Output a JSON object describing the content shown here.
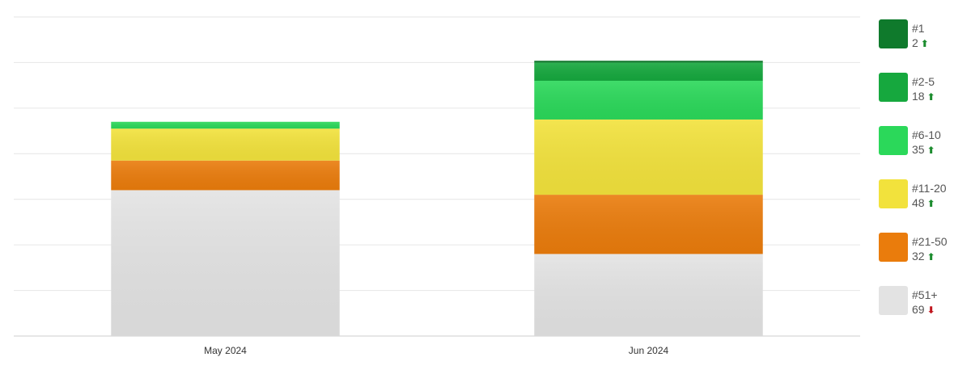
{
  "chart_data": {
    "type": "bar",
    "stacked": true,
    "categories": [
      "May 2024",
      "Jun 2024"
    ],
    "ylim": [
      0,
      70
    ],
    "grid": true,
    "legend_position": "right",
    "series": [
      {
        "name": "#51+",
        "color": "#e3e3e3",
        "values": [
          32,
          18
        ],
        "count": "69",
        "trend": "down"
      },
      {
        "name": "#21-50",
        "color": "#ea7c0c",
        "values": [
          6.5,
          13
        ],
        "count": "32",
        "trend": "up"
      },
      {
        "name": "#11-20",
        "color": "#f2e23c",
        "values": [
          7,
          16.5
        ],
        "count": "48",
        "trend": "up"
      },
      {
        "name": "#6-10",
        "color": "#2bd85a",
        "values": [
          1.5,
          8.5
        ],
        "count": "35",
        "trend": "up"
      },
      {
        "name": "#2-5",
        "color": "#16a83e",
        "values": [
          0,
          4
        ],
        "count": "18",
        "trend": "up"
      },
      {
        "name": "#1",
        "color": "#0f7a2c",
        "values": [
          0,
          0.4
        ],
        "count": "2",
        "trend": "up"
      }
    ]
  }
}
